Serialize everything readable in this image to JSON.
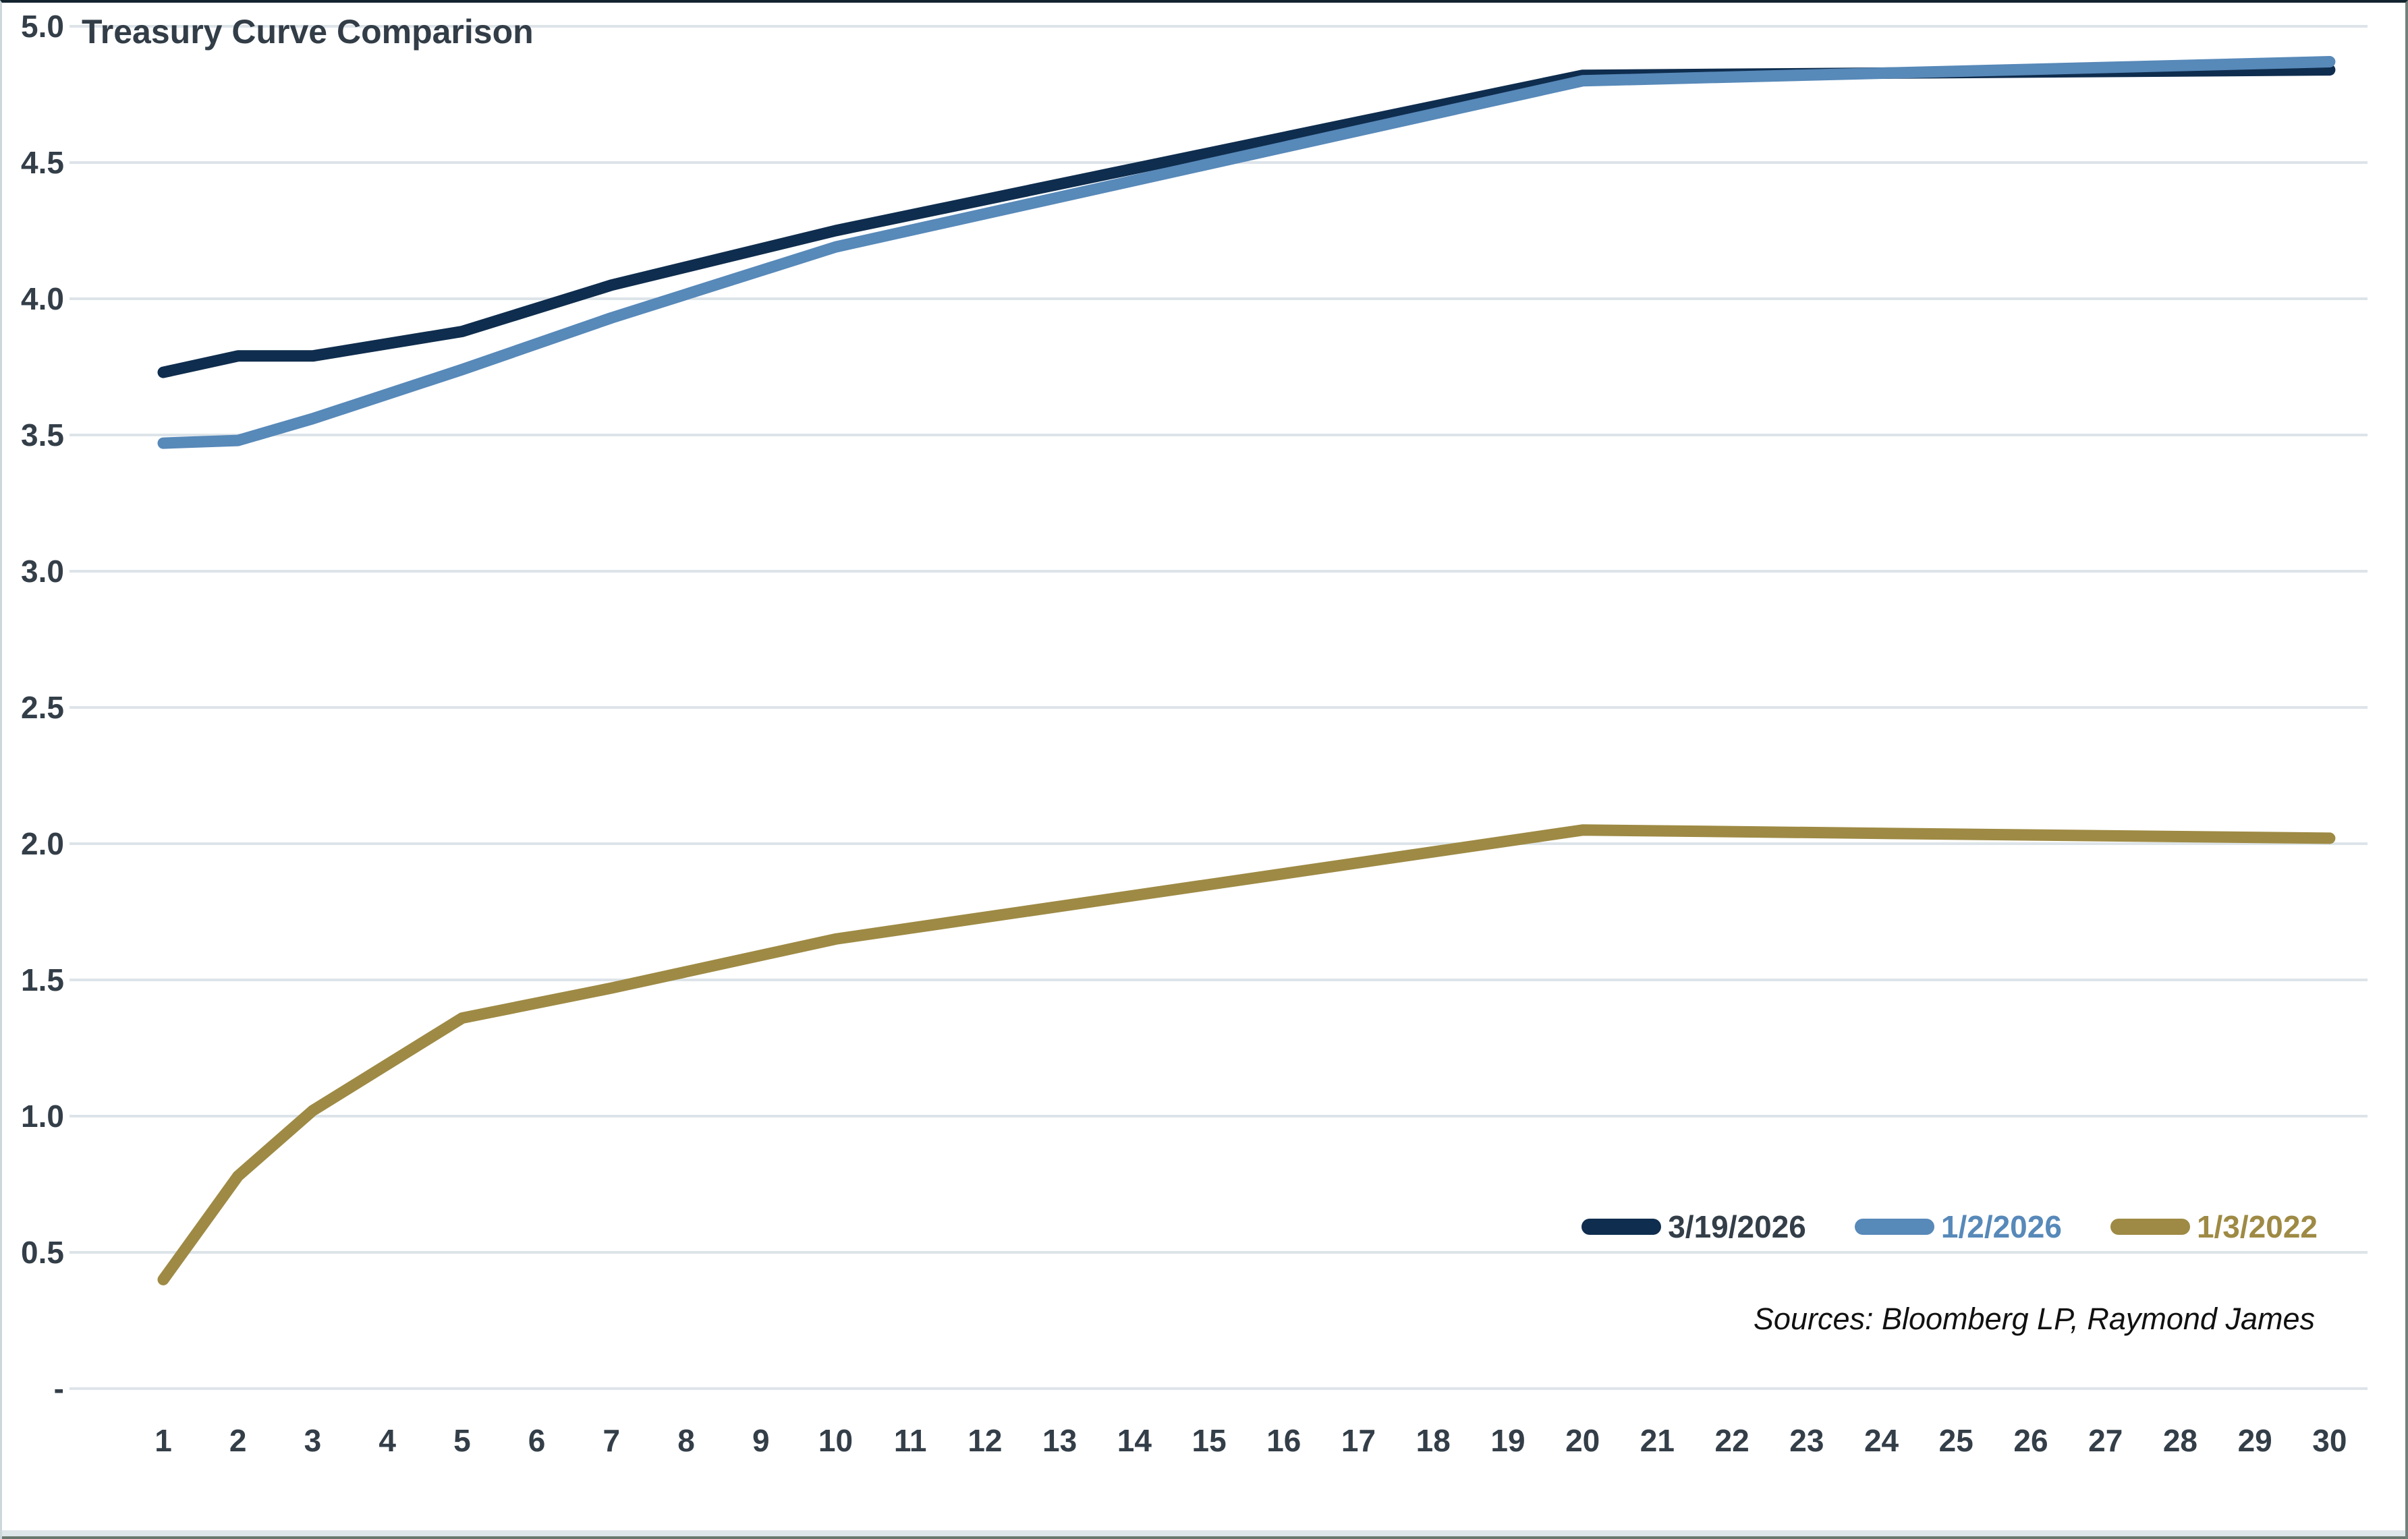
{
  "title": "Treasury Curve Comparison",
  "source_note": "Sources: Bloomberg LP, Raymond James",
  "colors": {
    "navy": "#0f2d4e",
    "blue": "#5789b9",
    "gold": "#9e8a44",
    "grid": "#dde4e9",
    "axis_text": "#333e48",
    "title_text": "#323d47"
  },
  "y_axis": {
    "ticks": [
      {
        "label": "5.0",
        "value": 5.0
      },
      {
        "label": "4.5",
        "value": 4.5
      },
      {
        "label": "4.0",
        "value": 4.0
      },
      {
        "label": "3.5",
        "value": 3.5
      },
      {
        "label": "3.0",
        "value": 3.0
      },
      {
        "label": "2.5",
        "value": 2.5
      },
      {
        "label": "2.0",
        "value": 2.0
      },
      {
        "label": "1.5",
        "value": 1.5
      },
      {
        "label": "1.0",
        "value": 1.0
      },
      {
        "label": "0.5",
        "value": 0.5
      },
      {
        "label": "-",
        "value": 0.0
      }
    ]
  },
  "x_axis": {
    "ticks": [
      1,
      2,
      3,
      4,
      5,
      6,
      7,
      8,
      9,
      10,
      11,
      12,
      13,
      14,
      15,
      16,
      17,
      18,
      19,
      20,
      21,
      22,
      23,
      24,
      25,
      26,
      27,
      28,
      29,
      30
    ]
  },
  "legend": {
    "items": [
      {
        "label": "3/19/2026",
        "series_index": 0
      },
      {
        "label": "1/2/2026",
        "series_index": 1
      },
      {
        "label": "1/3/2022",
        "series_index": 2
      }
    ]
  },
  "chart_data": {
    "type": "line",
    "title": "Treasury Curve Comparison",
    "xlabel": "",
    "ylabel": "",
    "xlim": [
      1,
      30
    ],
    "ylim": [
      0,
      5
    ],
    "grid": "horizontal",
    "legend_position": "bottom-right",
    "x_knots": [
      1,
      2,
      3,
      5,
      7,
      10,
      20,
      30
    ],
    "series": [
      {
        "name": "3/19/2026",
        "color": "#0f2d4e",
        "values": [
          3.73,
          3.79,
          3.79,
          3.88,
          4.05,
          4.25,
          4.82,
          4.84
        ]
      },
      {
        "name": "1/2/2026",
        "color": "#5789b9",
        "values": [
          3.47,
          3.48,
          3.56,
          3.74,
          3.93,
          4.19,
          4.8,
          4.87
        ]
      },
      {
        "name": "1/3/2022",
        "color": "#9e8a44",
        "values": [
          0.4,
          0.78,
          1.02,
          1.36,
          1.47,
          1.65,
          2.05,
          2.02
        ]
      }
    ]
  }
}
